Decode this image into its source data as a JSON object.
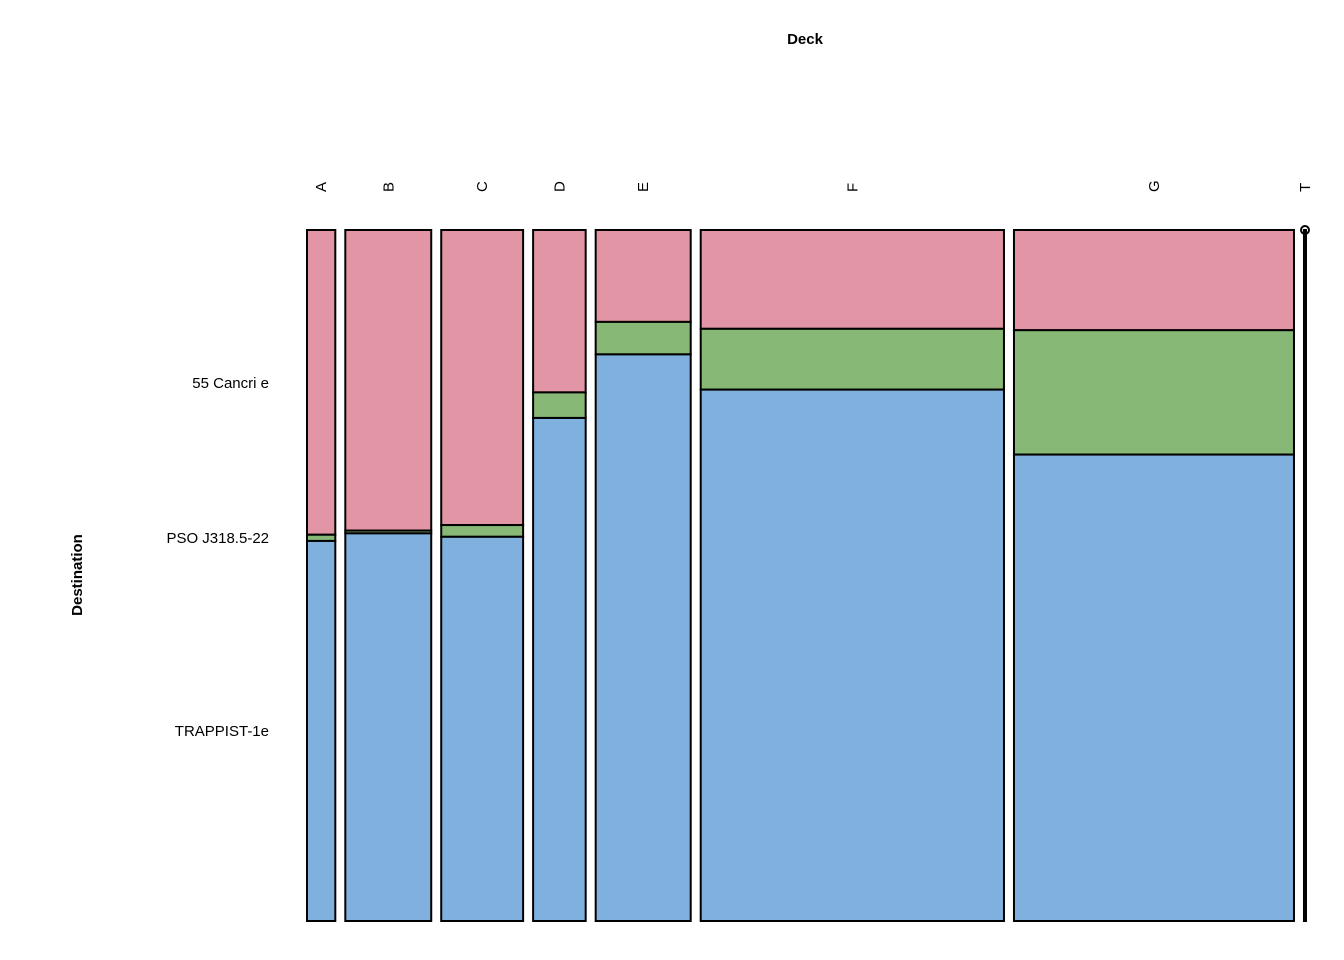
{
  "chart_data": {
    "type": "mosaic",
    "title": "Deck",
    "xlabel": "Deck",
    "ylabel": "Destination",
    "x_categories": [
      "A",
      "B",
      "C",
      "D",
      "E",
      "F",
      "G",
      "T"
    ],
    "y_categories": [
      "55 Cancri e",
      "PSO J318.5-22",
      "TRAPPIST-1e"
    ],
    "column_widths_relative": [
      28,
      85,
      81,
      52,
      94,
      300,
      277,
      2
    ],
    "proportions": {
      "A": [
        0.441,
        0.009,
        0.55
      ],
      "B": [
        0.435,
        0.004,
        0.561
      ],
      "C": [
        0.427,
        0.017,
        0.556
      ],
      "D": [
        0.235,
        0.037,
        0.728
      ],
      "E": [
        0.133,
        0.047,
        0.82
      ],
      "F": [
        0.143,
        0.088,
        0.769
      ],
      "G": [
        0.145,
        0.18,
        0.675
      ],
      "T": [
        0.0,
        0.0,
        1.0
      ]
    },
    "colors": {
      "55 Cancri e": "#E295A5",
      "PSO J318.5-22": "#88B875",
      "TRAPPIST-1e": "#7FB0DE"
    },
    "legend": "none"
  }
}
